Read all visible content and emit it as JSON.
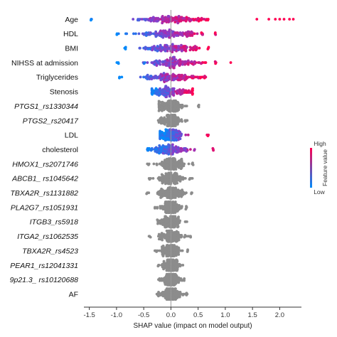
{
  "chart_data": {
    "type": "scatter",
    "subtype": "shap-beeswarm-summary",
    "xlabel": "SHAP value (impact on model output)",
    "xlim": [
      -1.6,
      2.4
    ],
    "xticks": [
      -1.5,
      -1.0,
      -0.5,
      0.0,
      0.5,
      1.0,
      1.5,
      2.0
    ],
    "xtick_labels": [
      "-1.5",
      "-1.0",
      "-0.5",
      "0.0",
      "0.5",
      "1.0",
      "1.5",
      "2.0"
    ],
    "grid": false,
    "zero_line": true,
    "colorbar": {
      "label": "Feature value",
      "high_label": "High",
      "low_label": "Low",
      "high_color": "#ff0052",
      "low_color": "#008bfb",
      "placement": "right"
    },
    "gray_color": "#8c8c8c",
    "features": [
      {
        "name": "Age",
        "italic": false,
        "colored": true,
        "min": -1.5,
        "max": 0.7,
        "spread": 0.3,
        "outliers": [
          1.58,
          1.8,
          1.92,
          2.0,
          2.08,
          2.18,
          2.25
        ]
      },
      {
        "name": "HDL",
        "italic": false,
        "colored": true,
        "min": -1.0,
        "max": 0.85,
        "spread": 0.28,
        "outliers": []
      },
      {
        "name": "BMI",
        "italic": false,
        "colored": true,
        "min": -0.85,
        "max": 0.7,
        "spread": 0.25,
        "outliers": []
      },
      {
        "name": "NIHSS  at admission",
        "italic": false,
        "colored": true,
        "min": -1.0,
        "max": 0.85,
        "spread": 0.25,
        "outliers": [
          1.1
        ]
      },
      {
        "name": "Triglycerides",
        "italic": false,
        "colored": true,
        "min": -0.95,
        "max": 0.65,
        "spread": 0.25,
        "outliers": []
      },
      {
        "name": "Stenosis",
        "italic": false,
        "colored": true,
        "min": -0.35,
        "max": 0.4,
        "spread": 0.18,
        "outliers": []
      },
      {
        "name": "PTGS1_rs1330344",
        "italic": true,
        "colored": false,
        "min": -0.22,
        "max": 0.55,
        "spread": 0.12,
        "outliers": []
      },
      {
        "name": "PTGS2_rs20417",
        "italic": true,
        "colored": false,
        "min": -0.25,
        "max": 0.3,
        "spread": 0.1,
        "outliers": []
      },
      {
        "name": "LDL",
        "italic": false,
        "colored": true,
        "min": -0.2,
        "max": 0.7,
        "spread": 0.12,
        "outliers": []
      },
      {
        "name": "cholesterol",
        "italic": false,
        "colored": true,
        "min": -0.45,
        "max": 0.8,
        "spread": 0.18,
        "outliers": []
      },
      {
        "name": "HMOX1_rs2071746",
        "italic": true,
        "colored": false,
        "min": -0.45,
        "max": 0.42,
        "spread": 0.12,
        "outliers": []
      },
      {
        "name": "ABCB1_ rs1045642",
        "italic": true,
        "colored": false,
        "min": -0.42,
        "max": 0.4,
        "spread": 0.12,
        "outliers": []
      },
      {
        "name": "TBXA2R_rs1131882",
        "italic": true,
        "colored": false,
        "min": -0.45,
        "max": 0.4,
        "spread": 0.12,
        "outliers": []
      },
      {
        "name": "PLA2G7_rs1051931",
        "italic": true,
        "colored": false,
        "min": -0.3,
        "max": 0.3,
        "spread": 0.1,
        "outliers": []
      },
      {
        "name": "ITGB3_rs5918",
        "italic": true,
        "colored": false,
        "min": -0.25,
        "max": 0.3,
        "spread": 0.1,
        "outliers": []
      },
      {
        "name": "ITGA2_rs1062535",
        "italic": true,
        "colored": false,
        "min": -0.42,
        "max": 0.38,
        "spread": 0.12,
        "outliers": []
      },
      {
        "name": "TBXA2R_rs4523",
        "italic": true,
        "colored": false,
        "min": -0.3,
        "max": 0.35,
        "spread": 0.1,
        "outliers": []
      },
      {
        "name": "PEAR1_rs12041331",
        "italic": true,
        "colored": false,
        "min": -0.25,
        "max": 0.22,
        "spread": 0.08,
        "outliers": []
      },
      {
        "name": "9p21.3_ rs10120688",
        "italic": true,
        "colored": false,
        "min": -0.25,
        "max": 0.25,
        "spread": 0.08,
        "outliers": []
      },
      {
        "name": "AF",
        "italic": false,
        "colored": false,
        "min": -0.28,
        "max": 0.3,
        "spread": 0.1,
        "outliers": []
      }
    ]
  }
}
